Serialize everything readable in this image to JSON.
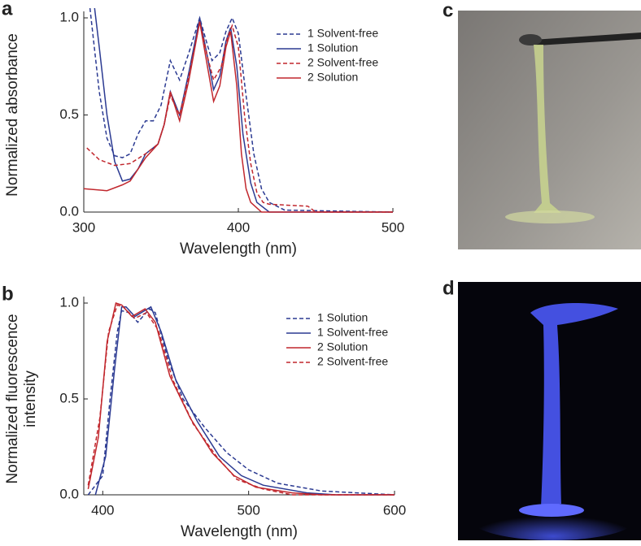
{
  "chart_data": [
    {
      "type": "line",
      "panel": "a",
      "xlabel": "Wavelength (nm)",
      "ylabel": [
        "Normalized absorbance"
      ],
      "xlim": [
        300,
        500
      ],
      "xticks": [
        300,
        400,
        500
      ],
      "ylim": [
        0,
        1
      ],
      "yticks": [
        {
          "value": 0,
          "label": "0.0"
        },
        {
          "value": 0.5,
          "label": "0.5"
        },
        {
          "value": 1,
          "label": "1.0"
        }
      ],
      "series": [
        {
          "name": "1 Solvent-free",
          "color": "#2b3a92",
          "linestyle": "dashed",
          "x": [
            304,
            310,
            315,
            320,
            325,
            330,
            335,
            340,
            345,
            350,
            356,
            362,
            368,
            375,
            380,
            383,
            388,
            392,
            396,
            400,
            405,
            410,
            415,
            420,
            430,
            500
          ],
          "values": [
            1.05,
            0.62,
            0.38,
            0.29,
            0.28,
            0.3,
            0.4,
            0.47,
            0.47,
            0.55,
            0.78,
            0.68,
            0.82,
            1.0,
            0.86,
            0.78,
            0.82,
            0.93,
            1.0,
            0.92,
            0.6,
            0.3,
            0.12,
            0.05,
            0.01,
            0
          ]
        },
        {
          "name": "1 Solution",
          "color": "#2b3a92",
          "linestyle": "solid",
          "x": [
            307,
            310,
            315,
            320,
            325,
            330,
            335,
            340,
            348,
            352,
            356,
            362,
            368,
            375,
            380,
            384,
            388,
            392,
            395,
            399,
            403,
            408,
            412,
            420,
            500
          ],
          "values": [
            1.05,
            0.85,
            0.5,
            0.26,
            0.16,
            0.17,
            0.22,
            0.3,
            0.35,
            0.45,
            0.62,
            0.5,
            0.72,
            1.0,
            0.8,
            0.63,
            0.7,
            0.88,
            0.95,
            0.75,
            0.4,
            0.15,
            0.05,
            0,
            0
          ]
        },
        {
          "name": "2 Solvent-free",
          "color": "#c1272d",
          "linestyle": "dashed",
          "x": [
            302,
            310,
            320,
            330,
            340,
            348,
            352,
            356,
            362,
            368,
            375,
            380,
            384,
            389,
            393,
            396,
            400,
            404,
            408,
            412,
            416,
            420,
            445,
            450,
            500
          ],
          "values": [
            0.33,
            0.27,
            0.24,
            0.25,
            0.3,
            0.35,
            0.45,
            0.6,
            0.5,
            0.7,
            0.98,
            0.8,
            0.68,
            0.75,
            0.9,
            0.96,
            0.85,
            0.5,
            0.25,
            0.1,
            0.05,
            0.04,
            0.03,
            0,
            0
          ]
        },
        {
          "name": "2 Solution",
          "color": "#c1272d",
          "linestyle": "solid",
          "x": [
            300,
            315,
            325,
            330,
            340,
            348,
            352,
            356,
            362,
            368,
            375,
            380,
            384,
            388,
            392,
            395,
            399,
            402,
            405,
            408,
            415,
            500
          ],
          "values": [
            0.12,
            0.11,
            0.14,
            0.16,
            0.28,
            0.35,
            0.45,
            0.62,
            0.47,
            0.68,
            0.98,
            0.75,
            0.57,
            0.65,
            0.85,
            0.93,
            0.65,
            0.3,
            0.12,
            0.05,
            0,
            0
          ]
        }
      ]
    },
    {
      "type": "line",
      "panel": "b",
      "xlabel": "Wavelength (nm)",
      "ylabel": [
        "Normalized fluorescence",
        "intensity"
      ],
      "xlim": [
        387,
        600
      ],
      "xticks": [
        400,
        500,
        600
      ],
      "ylim": [
        0,
        1
      ],
      "yticks": [
        {
          "value": 0,
          "label": "0.0"
        },
        {
          "value": 0.5,
          "label": "0.5"
        },
        {
          "value": 1,
          "label": "1.0"
        }
      ],
      "series": [
        {
          "name": "1 Solution",
          "color": "#2b3a92",
          "linestyle": "dashed",
          "x": [
            390,
            400,
            405,
            410,
            413,
            418,
            424,
            432,
            436,
            445,
            455,
            470,
            485,
            500,
            520,
            550,
            600
          ],
          "values": [
            0,
            0.1,
            0.5,
            0.85,
            0.96,
            0.95,
            0.9,
            0.97,
            0.95,
            0.7,
            0.5,
            0.35,
            0.22,
            0.13,
            0.06,
            0.02,
            0
          ]
        },
        {
          "name": "1 Solvent-free",
          "color": "#2b3a92",
          "linestyle": "solid",
          "x": [
            395,
            402,
            408,
            413,
            416,
            422,
            433,
            440,
            450,
            465,
            480,
            495,
            510,
            540,
            560,
            600
          ],
          "values": [
            0,
            0.2,
            0.65,
            0.98,
            0.98,
            0.93,
            0.98,
            0.85,
            0.6,
            0.38,
            0.2,
            0.1,
            0.05,
            0.01,
            0,
            0
          ]
        },
        {
          "name": "2 Solution",
          "color": "#c1272d",
          "linestyle": "solid",
          "x": [
            390,
            397,
            403,
            409,
            413,
            420,
            429,
            436,
            446,
            460,
            475,
            490,
            505,
            530,
            550,
            600
          ],
          "values": [
            0.03,
            0.3,
            0.8,
            1.0,
            0.99,
            0.93,
            0.97,
            0.9,
            0.62,
            0.4,
            0.22,
            0.1,
            0.04,
            0.01,
            0,
            0
          ]
        },
        {
          "name": "2 Solvent-free",
          "color": "#c1272d",
          "linestyle": "dashed",
          "x": [
            390,
            398,
            404,
            410,
            414,
            422,
            430,
            438,
            448,
            462,
            478,
            492,
            510,
            530,
            600
          ],
          "values": [
            0.05,
            0.4,
            0.85,
            0.99,
            0.98,
            0.92,
            0.95,
            0.86,
            0.6,
            0.37,
            0.2,
            0.08,
            0.03,
            0,
            0
          ]
        }
      ]
    }
  ],
  "photos": [
    {
      "label": "c"
    },
    {
      "label": "d"
    }
  ]
}
